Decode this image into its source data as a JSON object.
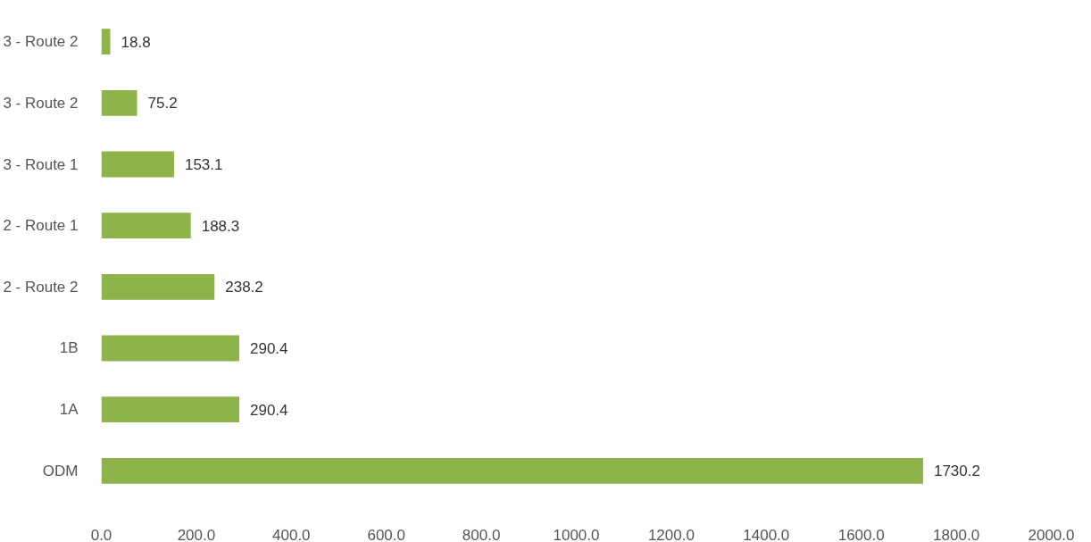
{
  "chart_data": {
    "type": "bar",
    "orientation": "horizontal",
    "categories": [
      "3 - Route 2",
      "3 - Route 2",
      "3 - Route 1",
      "2 - Route 1",
      "2 - Route 2",
      "1B",
      "1A",
      "ODM"
    ],
    "values": [
      18.8,
      75.2,
      153.1,
      188.3,
      238.2,
      290.4,
      290.4,
      1730.2
    ],
    "color": "#8db34a",
    "xlim": [
      0,
      2000
    ],
    "xticks": [
      {
        "value": 0,
        "label": "0.0"
      },
      {
        "value": 200,
        "label": "200.0"
      },
      {
        "value": 400,
        "label": "400.0"
      },
      {
        "value": 600,
        "label": "600.0"
      },
      {
        "value": 800,
        "label": "800.0"
      },
      {
        "value": 1000,
        "label": "1000.0"
      },
      {
        "value": 1200,
        "label": "1200.0"
      },
      {
        "value": 1400,
        "label": "1400.0"
      },
      {
        "value": 1600,
        "label": "1600.0"
      },
      {
        "value": 1800,
        "label": "1800.0"
      },
      {
        "value": 2000,
        "label": "2000.0"
      }
    ],
    "data_labels": true,
    "grid": false
  }
}
